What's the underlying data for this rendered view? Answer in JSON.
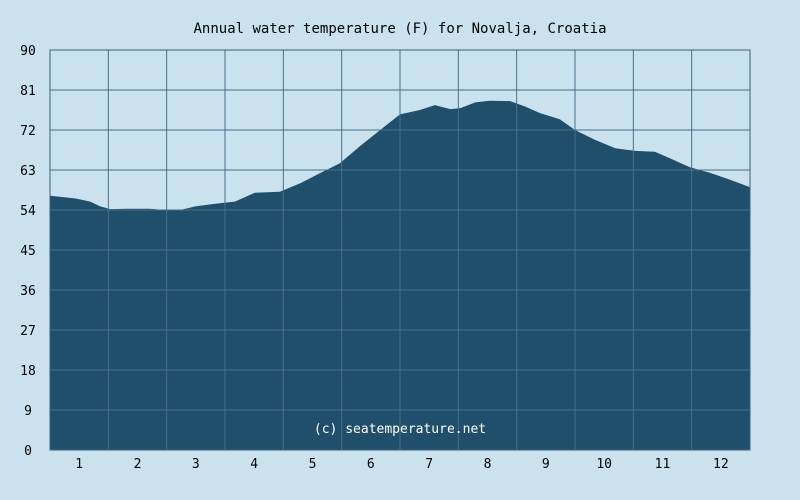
{
  "chart_data": {
    "type": "area",
    "title": "Annual water temperature (F) for Novalja, Croatia",
    "xlabel": "",
    "ylabel": "",
    "ylim": [
      0,
      90
    ],
    "xlim": [
      0.5,
      12.5
    ],
    "grid": true,
    "legend": "none",
    "y_ticks": [
      "0",
      "9",
      "18",
      "27",
      "36",
      "45",
      "54",
      "63",
      "72",
      "81",
      "90"
    ],
    "x_ticks": [
      "1",
      "2",
      "3",
      "4",
      "5",
      "6",
      "7",
      "8",
      "9",
      "10",
      "11",
      "12"
    ],
    "annotation": "(c) seatemperature.net",
    "series": [
      {
        "name": "Water temperature (F)",
        "x": [
          0.5,
          0.93,
          1.19,
          1.36,
          1.53,
          1.87,
          2.21,
          2.47,
          2.73,
          2.99,
          3.33,
          3.67,
          4.01,
          4.44,
          4.79,
          5.13,
          5.47,
          5.81,
          6.16,
          6.5,
          6.84,
          7.1,
          7.36,
          7.53,
          7.79,
          8.04,
          8.39,
          8.64,
          8.9,
          9.24,
          9.5,
          9.84,
          10.19,
          10.53,
          10.87,
          11.13,
          11.47,
          11.81,
          12.16,
          12.5
        ],
        "y": [
          57.2,
          56.6,
          55.9,
          54.8,
          54.2,
          54.3,
          54.3,
          54.0,
          54.0,
          54.8,
          55.4,
          55.9,
          57.9,
          58.1,
          60.0,
          62.3,
          64.5,
          68.3,
          72.0,
          75.5,
          76.5,
          77.6,
          76.7,
          76.9,
          78.2,
          78.6,
          78.5,
          77.3,
          75.8,
          74.4,
          72.0,
          69.8,
          67.9,
          67.3,
          67.1,
          65.6,
          63.6,
          62.4,
          60.8,
          59.1
        ]
      }
    ],
    "colors": {
      "background": "#cae2ee",
      "fill": "#1f4f6b",
      "grid": "#4a6f8a",
      "frame": "#3e6079"
    }
  }
}
